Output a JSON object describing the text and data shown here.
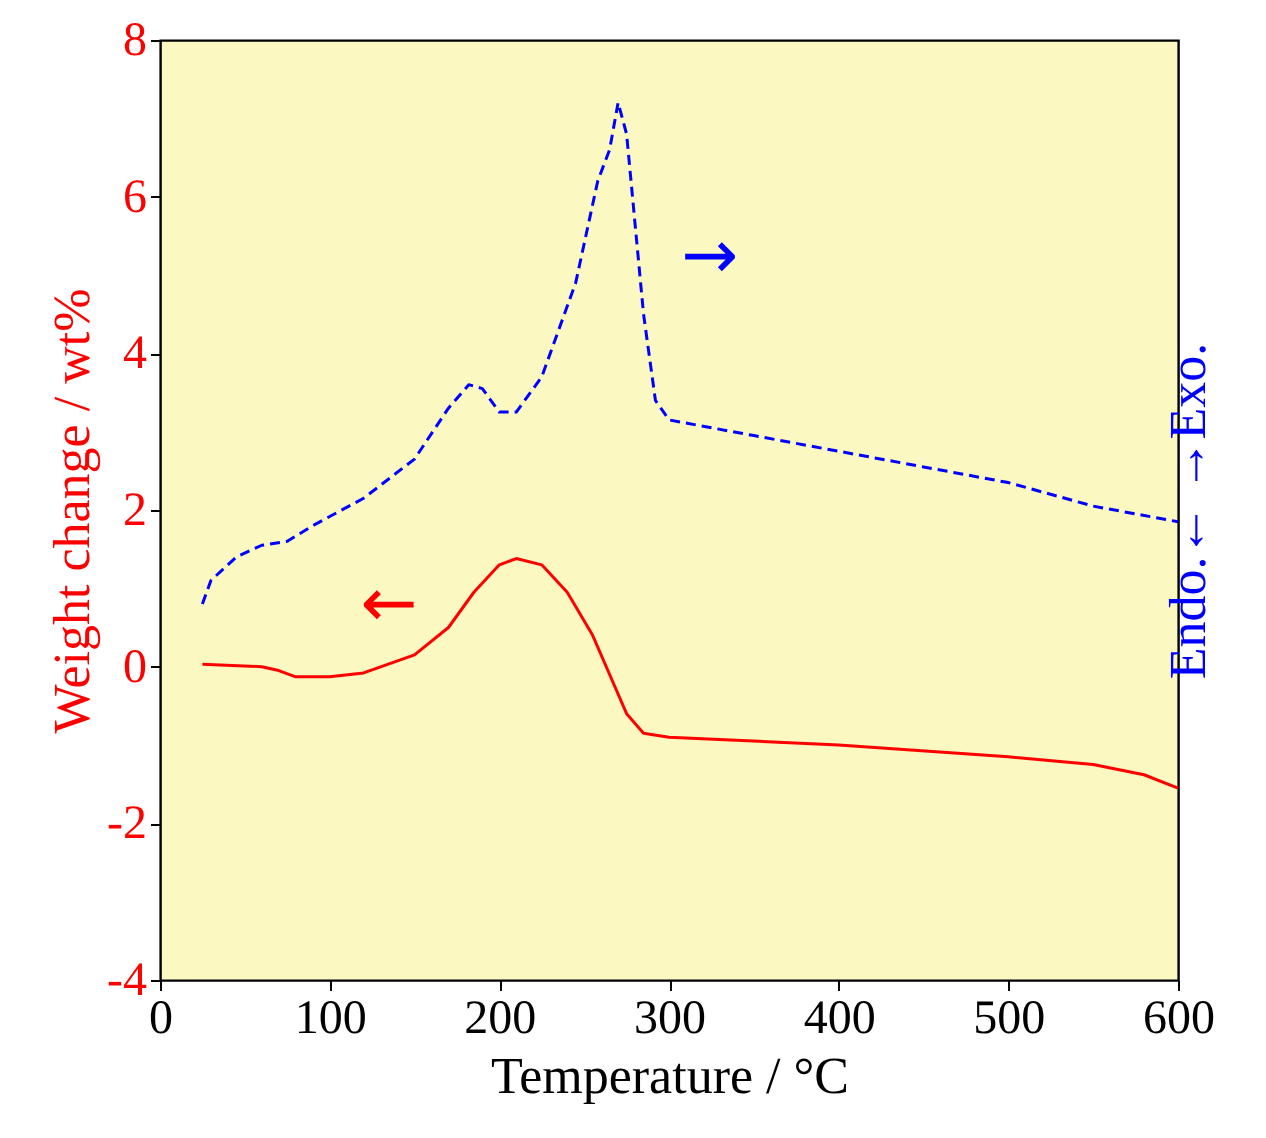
{
  "chart_data": {
    "type": "line",
    "xlabel": "Temperature / °C",
    "ylabel": "Weight change / wt%",
    "y2label": "Endo.←    →Exo.",
    "xlim": [
      0,
      600
    ],
    "xticks": [
      0,
      100,
      200,
      300,
      400,
      500,
      600
    ],
    "ylim": [
      -4,
      8
    ],
    "yticks": [
      -4,
      -2,
      0,
      2,
      4,
      6,
      8
    ],
    "grid": false,
    "series": [
      {
        "color": "#ff0000",
        "line_style": "solid",
        "x": [
          25,
          60,
          70,
          80,
          100,
          120,
          150,
          170,
          185,
          200,
          210,
          225,
          240,
          255,
          265,
          275,
          285,
          300,
          400,
          500,
          550,
          580,
          600
        ],
        "values": [
          0.03,
          0.0,
          -0.05,
          -0.13,
          -0.13,
          -0.08,
          0.15,
          0.5,
          0.95,
          1.3,
          1.38,
          1.3,
          0.95,
          0.4,
          -0.1,
          -0.6,
          -0.85,
          -0.9,
          -1.0,
          -1.15,
          -1.25,
          -1.38,
          -1.55
        ]
      },
      {
        "color": "#0000ff",
        "line_style": "dashed",
        "x": [
          25,
          30,
          45,
          60,
          75,
          90,
          120,
          150,
          170,
          182,
          190,
          200,
          210,
          225,
          245,
          258,
          265,
          270,
          275,
          285,
          292,
          300,
          350,
          400,
          450,
          500,
          550,
          600
        ],
        "values": [
          0.8,
          1.1,
          1.4,
          1.55,
          1.6,
          1.8,
          2.15,
          2.65,
          3.3,
          3.6,
          3.55,
          3.25,
          3.25,
          3.7,
          4.9,
          6.2,
          6.6,
          7.2,
          6.8,
          4.5,
          3.4,
          3.15,
          2.95,
          2.75,
          2.55,
          2.35,
          2.05,
          1.85
        ]
      }
    ],
    "annotations": [
      "←",
      "→"
    ]
  }
}
